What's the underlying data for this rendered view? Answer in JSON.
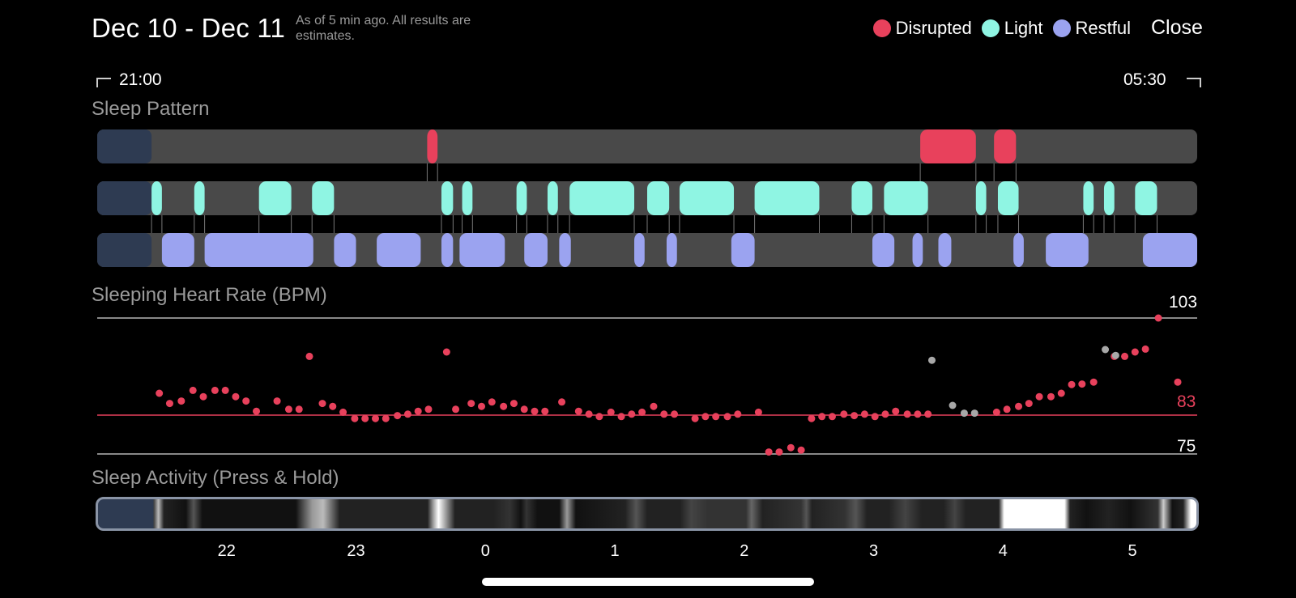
{
  "header": {
    "date_range": "Dec 10 - Dec 11",
    "note": "As of 5 min ago. All results are estimates.",
    "close_label": "Close"
  },
  "legend": [
    {
      "label": "Disrupted",
      "color": "#e8415c"
    },
    {
      "label": "Light",
      "color": "#8ff5e3"
    },
    {
      "label": "Restful",
      "color": "#9ba3f0"
    }
  ],
  "time_range": {
    "start": "21:00",
    "end": "05:30"
  },
  "sections": {
    "pattern": "Sleep Pattern",
    "heart_rate": "Sleeping Heart Rate (BPM)",
    "activity": "Sleep Activity (Press & Hold)"
  },
  "sleep_pattern": {
    "start_hour": 21.0,
    "end_hour": 29.5,
    "awake_until": 21.42,
    "disrupted": [
      [
        23.55,
        23.63
      ],
      [
        27.36,
        27.79
      ],
      [
        27.93,
        28.1
      ]
    ],
    "light": [
      [
        21.42,
        21.5
      ],
      [
        21.75,
        21.83
      ],
      [
        22.25,
        22.5
      ],
      [
        22.66,
        22.83
      ],
      [
        23.66,
        23.75
      ],
      [
        23.82,
        23.9
      ],
      [
        24.24,
        24.32
      ],
      [
        24.48,
        24.56
      ],
      [
        24.65,
        25.15
      ],
      [
        25.25,
        25.42
      ],
      [
        25.5,
        25.92
      ],
      [
        26.08,
        26.58
      ],
      [
        26.83,
        26.99
      ],
      [
        27.08,
        27.42
      ],
      [
        27.79,
        27.87
      ],
      [
        27.96,
        28.12
      ],
      [
        28.62,
        28.7
      ],
      [
        28.78,
        28.86
      ],
      [
        29.02,
        29.19
      ]
    ],
    "restful": [
      [
        21.5,
        21.75
      ],
      [
        21.83,
        22.67
      ],
      [
        22.83,
        23.0
      ],
      [
        23.16,
        23.5
      ],
      [
        23.66,
        23.75
      ],
      [
        23.8,
        24.15
      ],
      [
        24.3,
        24.48
      ],
      [
        24.57,
        24.66
      ],
      [
        25.15,
        25.23
      ],
      [
        25.4,
        25.48
      ],
      [
        25.9,
        26.08
      ],
      [
        26.99,
        27.16
      ],
      [
        27.3,
        27.38
      ],
      [
        27.5,
        27.6
      ],
      [
        28.08,
        28.16
      ],
      [
        28.33,
        28.66
      ],
      [
        29.08,
        29.5
      ]
    ]
  },
  "heart_rate": {
    "max": 103,
    "avg": 83,
    "min": 75,
    "max_label": "103",
    "avg_label": "83",
    "min_label": "75",
    "points": [
      [
        21.48,
        87.5
      ],
      [
        21.56,
        85.4
      ],
      [
        21.65,
        85.9
      ],
      [
        21.74,
        88.1
      ],
      [
        21.82,
        86.8
      ],
      [
        21.91,
        88.1
      ],
      [
        21.99,
        88.1
      ],
      [
        22.07,
        86.8
      ],
      [
        22.15,
        85.9
      ],
      [
        22.23,
        83.8
      ],
      [
        22.39,
        85.9
      ],
      [
        22.48,
        84.2
      ],
      [
        22.56,
        84.2
      ],
      [
        22.64,
        95.1
      ],
      [
        22.74,
        85.4
      ],
      [
        22.82,
        84.8
      ],
      [
        22.9,
        83.6
      ],
      [
        22.99,
        82.3
      ],
      [
        23.07,
        82.3
      ],
      [
        23.15,
        82.3
      ],
      [
        23.23,
        82.3
      ],
      [
        23.32,
        82.9
      ],
      [
        23.4,
        83.2
      ],
      [
        23.48,
        83.8
      ],
      [
        23.56,
        84.2
      ],
      [
        23.7,
        96.0
      ],
      [
        23.77,
        84.2
      ],
      [
        23.89,
        85.4
      ],
      [
        23.97,
        84.8
      ],
      [
        24.05,
        85.7
      ],
      [
        24.14,
        84.8
      ],
      [
        24.22,
        85.4
      ],
      [
        24.3,
        84.2
      ],
      [
        24.38,
        83.8
      ],
      [
        24.46,
        83.8
      ],
      [
        24.59,
        85.7
      ],
      [
        24.72,
        83.8
      ],
      [
        24.8,
        83.2
      ],
      [
        24.88,
        82.7
      ],
      [
        24.97,
        83.6
      ],
      [
        25.05,
        82.7
      ],
      [
        25.13,
        83.2
      ],
      [
        25.21,
        83.6
      ],
      [
        25.3,
        84.8
      ],
      [
        25.38,
        83.2
      ],
      [
        25.46,
        83.2
      ],
      [
        25.62,
        82.3
      ],
      [
        25.7,
        82.7
      ],
      [
        25.78,
        82.7
      ],
      [
        25.87,
        82.7
      ],
      [
        25.95,
        83.2
      ],
      [
        26.11,
        83.6
      ],
      [
        26.19,
        75.4
      ],
      [
        26.27,
        75.4
      ],
      [
        26.36,
        76.3
      ],
      [
        26.44,
        75.8
      ],
      [
        26.52,
        82.3
      ],
      [
        26.6,
        82.7
      ],
      [
        26.68,
        82.7
      ],
      [
        26.77,
        83.2
      ],
      [
        26.85,
        82.9
      ],
      [
        26.93,
        83.2
      ],
      [
        27.01,
        82.7
      ],
      [
        27.09,
        83.2
      ],
      [
        27.17,
        83.8
      ],
      [
        27.26,
        83.2
      ],
      [
        27.34,
        83.2
      ],
      [
        27.42,
        83.2
      ],
      [
        27.95,
        83.6
      ],
      [
        28.03,
        84.2
      ],
      [
        28.12,
        84.8
      ],
      [
        28.2,
        85.4
      ],
      [
        28.28,
        86.8
      ],
      [
        28.37,
        86.8
      ],
      [
        28.45,
        87.5
      ],
      [
        28.53,
        89.3
      ],
      [
        28.61,
        89.4
      ],
      [
        28.7,
        89.8
      ],
      [
        28.86,
        95.1
      ],
      [
        28.94,
        95.1
      ],
      [
        29.02,
        96.0
      ],
      [
        29.1,
        96.6
      ],
      [
        29.2,
        103.0
      ],
      [
        29.35,
        89.8
      ]
    ],
    "gray_points": [
      [
        27.45,
        94.3
      ],
      [
        27.61,
        85.0
      ],
      [
        27.7,
        83.4
      ],
      [
        27.78,
        83.4
      ],
      [
        28.79,
        96.5
      ],
      [
        28.87,
        95.3
      ]
    ]
  },
  "activity": {
    "stops": [
      [
        0.0,
        "#2e3b52"
      ],
      [
        0.05,
        "#2e3b52"
      ],
      [
        0.051,
        "#444"
      ],
      [
        0.055,
        "#bbb"
      ],
      [
        0.06,
        "#222"
      ],
      [
        0.08,
        "#111"
      ],
      [
        0.087,
        "#555"
      ],
      [
        0.095,
        "#111"
      ],
      [
        0.18,
        "#111"
      ],
      [
        0.195,
        "#999"
      ],
      [
        0.205,
        "#bbb"
      ],
      [
        0.22,
        "#222"
      ],
      [
        0.3,
        "#222"
      ],
      [
        0.305,
        "#999"
      ],
      [
        0.31,
        "#fff"
      ],
      [
        0.325,
        "#222"
      ],
      [
        0.36,
        "#222"
      ],
      [
        0.375,
        "#333"
      ],
      [
        0.385,
        "#111"
      ],
      [
        0.385,
        "#111"
      ],
      [
        0.39,
        "#333"
      ],
      [
        0.4,
        "#111"
      ],
      [
        0.42,
        "#111"
      ],
      [
        0.427,
        "#999"
      ],
      [
        0.435,
        "#111"
      ],
      [
        0.48,
        "#222"
      ],
      [
        0.49,
        "#555"
      ],
      [
        0.5,
        "#222"
      ],
      [
        0.53,
        "#222"
      ],
      [
        0.54,
        "#444"
      ],
      [
        0.555,
        "#333"
      ],
      [
        0.59,
        "#333"
      ],
      [
        0.595,
        "#666"
      ],
      [
        0.605,
        "#222"
      ],
      [
        0.64,
        "#333"
      ],
      [
        0.645,
        "#555"
      ],
      [
        0.65,
        "#222"
      ],
      [
        0.68,
        "#333"
      ],
      [
        0.69,
        "#555"
      ],
      [
        0.7,
        "#222"
      ],
      [
        0.72,
        "#222"
      ],
      [
        0.735,
        "#444"
      ],
      [
        0.75,
        "#222"
      ],
      [
        0.77,
        "#222"
      ],
      [
        0.78,
        "#444"
      ],
      [
        0.79,
        "#222"
      ],
      [
        0.82,
        "#222"
      ],
      [
        0.825,
        "#fff"
      ],
      [
        0.88,
        "#fff"
      ],
      [
        0.885,
        "#222"
      ],
      [
        0.9,
        "#111"
      ],
      [
        0.92,
        "#222"
      ],
      [
        0.94,
        "#111"
      ],
      [
        0.965,
        "#333"
      ],
      [
        0.97,
        "#ccc"
      ],
      [
        0.978,
        "#111"
      ],
      [
        0.988,
        "#222"
      ],
      [
        0.995,
        "#fff"
      ],
      [
        1.0,
        "#fff"
      ]
    ]
  },
  "axis_ticks": [
    "22",
    "23",
    "0",
    "1",
    "2",
    "3",
    "4",
    "5"
  ]
}
